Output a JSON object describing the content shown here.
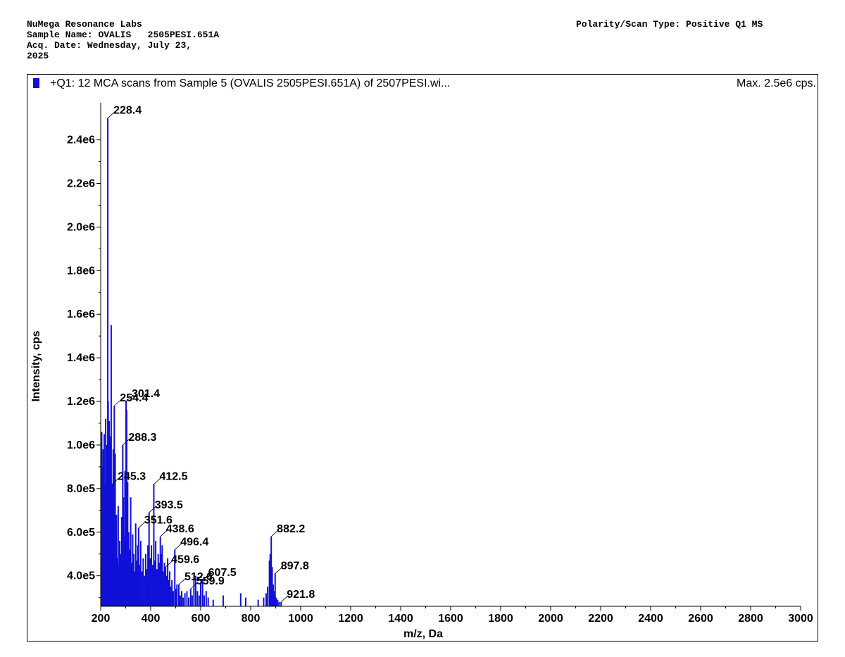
{
  "header": {
    "lab_name": "NuMega Resonance Labs",
    "sample_label": "Sample Name:",
    "sample_name": "OVALIS   2505PESI.651A",
    "acq_label": "Acq. Date:",
    "acq_date_line1": "Wednesday, July 23,",
    "acq_date_line2": "2025",
    "polarity_label": "Polarity/Scan Type:",
    "polarity_value": "Positive Q1 MS"
  },
  "colors": {
    "series": "#1010d8",
    "axis": "#000000",
    "background": "#ffffff"
  },
  "chart_data": {
    "type": "bar",
    "title": "+Q1: 12 MCA scans from Sample 5 (OVALIS   2505PESI.651A) of 2507PESI.wi...",
    "max_label": "Max. 2.5e6 cps.",
    "xlabel": "m/z, Da",
    "ylabel": "Intensity, cps",
    "xlim": [
      200,
      3000
    ],
    "ylim": [
      260000,
      2570000
    ],
    "grid": false,
    "x_ticks": [
      200,
      400,
      600,
      800,
      1000,
      1200,
      1400,
      1600,
      1800,
      2000,
      2200,
      2400,
      2600,
      2800,
      3000
    ],
    "y_ticks": [
      {
        "value": 400000,
        "label": "4.0e5"
      },
      {
        "value": 600000,
        "label": "6.0e5"
      },
      {
        "value": 800000,
        "label": "8.0e5"
      },
      {
        "value": 1000000,
        "label": "1.0e6"
      },
      {
        "value": 1200000,
        "label": "1.2e6"
      },
      {
        "value": 1400000,
        "label": "1.4e6"
      },
      {
        "value": 1600000,
        "label": "1.6e6"
      },
      {
        "value": 1800000,
        "label": "1.8e6"
      },
      {
        "value": 2000000,
        "label": "2.0e6"
      },
      {
        "value": 2200000,
        "label": "2.2e6"
      },
      {
        "value": 2400000,
        "label": "2.4e6"
      }
    ],
    "series": [
      {
        "points": [
          [
            202,
            620000
          ],
          [
            204,
            1060000
          ],
          [
            206,
            900000
          ],
          [
            208,
            700000
          ],
          [
            210,
            980000
          ],
          [
            212,
            640000
          ],
          [
            214,
            1050000
          ],
          [
            216,
            820000
          ],
          [
            218,
            750000
          ],
          [
            220,
            1120000
          ],
          [
            222,
            900000
          ],
          [
            224,
            1000000
          ],
          [
            226,
            780000
          ],
          [
            228.4,
            2500000
          ],
          [
            230,
            1200000
          ],
          [
            232,
            880000
          ],
          [
            234,
            1110000
          ],
          [
            236,
            950000
          ],
          [
            238,
            1040000
          ],
          [
            240,
            690000
          ],
          [
            242,
            1550000
          ],
          [
            244,
            720000
          ],
          [
            245.3,
            820000
          ],
          [
            247,
            640000
          ],
          [
            250,
            980000
          ],
          [
            252,
            600000
          ],
          [
            254.4,
            1180000
          ],
          [
            256,
            790000
          ],
          [
            258,
            960000
          ],
          [
            260,
            560000
          ],
          [
            263,
            680000
          ],
          [
            266,
            480000
          ],
          [
            270,
            720000
          ],
          [
            273,
            450000
          ],
          [
            276,
            560000
          ],
          [
            280,
            500000
          ],
          [
            284,
            670000
          ],
          [
            288.3,
            1000000
          ],
          [
            291,
            760000
          ],
          [
            294,
            580000
          ],
          [
            297,
            880000
          ],
          [
            301.4,
            1200000
          ],
          [
            304,
            1160000
          ],
          [
            308,
            830000
          ],
          [
            312,
            600000
          ],
          [
            316,
            520000
          ],
          [
            320,
            760000
          ],
          [
            324,
            460000
          ],
          [
            328,
            590000
          ],
          [
            332,
            500000
          ],
          [
            336,
            420000
          ],
          [
            340,
            640000
          ],
          [
            344,
            470000
          ],
          [
            348,
            540000
          ],
          [
            351.6,
            620000
          ],
          [
            355,
            450000
          ],
          [
            360,
            560000
          ],
          [
            365,
            420000
          ],
          [
            370,
            480000
          ],
          [
            375,
            400000
          ],
          [
            380,
            500000
          ],
          [
            385,
            430000
          ],
          [
            389,
            540000
          ],
          [
            393.5,
            690000
          ],
          [
            398,
            480000
          ],
          [
            403,
            540000
          ],
          [
            407,
            450000
          ],
          [
            412.5,
            820000
          ],
          [
            416,
            470000
          ],
          [
            420,
            560000
          ],
          [
            425,
            430000
          ],
          [
            430,
            500000
          ],
          [
            434,
            460000
          ],
          [
            438.6,
            580000
          ],
          [
            442,
            500000
          ],
          [
            446,
            540000
          ],
          [
            450,
            420000
          ],
          [
            455,
            460000
          ],
          [
            459.6,
            440000
          ],
          [
            464,
            400000
          ],
          [
            468,
            480000
          ],
          [
            472,
            380000
          ],
          [
            476,
            420000
          ],
          [
            480,
            350000
          ],
          [
            485,
            380000
          ],
          [
            490,
            330000
          ],
          [
            496.4,
            520000
          ],
          [
            500,
            340000
          ],
          [
            505,
            360000
          ],
          [
            512.6,
            360000
          ],
          [
            518,
            310000
          ],
          [
            524,
            330000
          ],
          [
            530,
            300000
          ],
          [
            537,
            320000
          ],
          [
            545,
            330000
          ],
          [
            552,
            300000
          ],
          [
            559.9,
            340000
          ],
          [
            566,
            310000
          ],
          [
            573,
            380000
          ],
          [
            580,
            400000
          ],
          [
            587,
            330000
          ],
          [
            594,
            310000
          ],
          [
            600,
            370000
          ],
          [
            607.5,
            380000
          ],
          [
            614,
            310000
          ],
          [
            622,
            330000
          ],
          [
            630,
            300000
          ],
          [
            650,
            290000
          ],
          [
            690,
            310000
          ],
          [
            760,
            320000
          ],
          [
            780,
            300000
          ],
          [
            830,
            290000
          ],
          [
            852,
            300000
          ],
          [
            862,
            320000
          ],
          [
            868,
            350000
          ],
          [
            875,
            470000
          ],
          [
            878,
            500000
          ],
          [
            882.2,
            580000
          ],
          [
            886,
            440000
          ],
          [
            890,
            360000
          ],
          [
            894,
            330000
          ],
          [
            897.8,
            410000
          ],
          [
            902,
            300000
          ],
          [
            908,
            290000
          ],
          [
            914,
            280000
          ],
          [
            921.8,
            280000
          ]
        ]
      }
    ],
    "annotations": [
      {
        "x": 228.4,
        "y": 2500000,
        "label": "228.4"
      },
      {
        "x": 254.4,
        "y": 1180000,
        "label": "254.4"
      },
      {
        "x": 301.4,
        "y": 1200000,
        "label": "301.4"
      },
      {
        "x": 288.3,
        "y": 1000000,
        "label": "288.3"
      },
      {
        "x": 245.3,
        "y": 820000,
        "label": "245.3"
      },
      {
        "x": 412.5,
        "y": 820000,
        "label": "412.5"
      },
      {
        "x": 393.5,
        "y": 690000,
        "label": "393.5"
      },
      {
        "x": 351.6,
        "y": 620000,
        "label": "351.6"
      },
      {
        "x": 438.6,
        "y": 580000,
        "label": "438.6"
      },
      {
        "x": 882.2,
        "y": 580000,
        "label": "882.2"
      },
      {
        "x": 496.4,
        "y": 520000,
        "label": "496.4"
      },
      {
        "x": 459.6,
        "y": 440000,
        "label": "459.6"
      },
      {
        "x": 897.8,
        "y": 410000,
        "label": "897.8"
      },
      {
        "x": 607.5,
        "y": 380000,
        "label": "607.5"
      },
      {
        "x": 512.6,
        "y": 360000,
        "label": "512.6"
      },
      {
        "x": 559.9,
        "y": 340000,
        "label": "559.9"
      },
      {
        "x": 921.8,
        "y": 280000,
        "label": "921.8"
      }
    ]
  }
}
